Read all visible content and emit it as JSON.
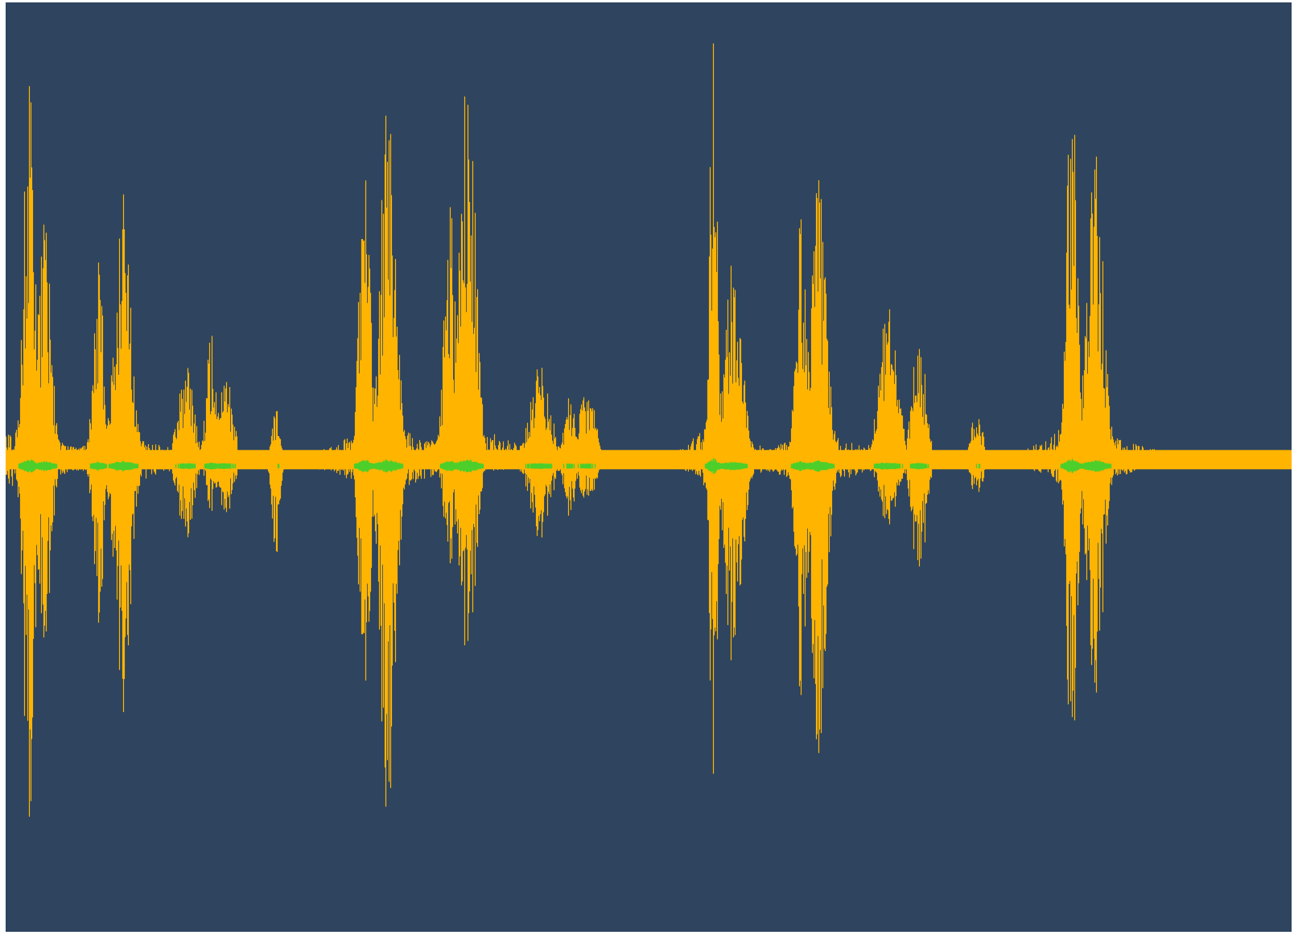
{
  "chart_data": {
    "type": "area",
    "title": "",
    "xlabel": "",
    "ylabel": "",
    "grid": false,
    "legend": "none",
    "colors": {
      "background": "#2e445f",
      "primary_wave": "#ffb400",
      "secondary_wave": "#4ccf2a"
    },
    "ylim": [
      -1,
      1
    ],
    "bursts": [
      {
        "t": 0.018,
        "up": 0.93,
        "down": 0.86,
        "width": 0.004
      },
      {
        "t": 0.03,
        "up": 0.56,
        "down": 0.41,
        "width": 0.005
      },
      {
        "t": 0.072,
        "up": 0.45,
        "down": 0.36,
        "width": 0.004
      },
      {
        "t": 0.091,
        "up": 0.63,
        "down": 0.58,
        "width": 0.006
      },
      {
        "t": 0.14,
        "up": 0.22,
        "down": 0.18,
        "width": 0.006
      },
      {
        "t": 0.16,
        "up": 0.3,
        "down": 0.12,
        "width": 0.004
      },
      {
        "t": 0.17,
        "up": 0.23,
        "down": 0.15,
        "width": 0.006
      },
      {
        "t": 0.21,
        "up": 0.12,
        "down": 0.22,
        "width": 0.003
      },
      {
        "t": 0.279,
        "up": 0.81,
        "down": 0.62,
        "width": 0.004
      },
      {
        "t": 0.297,
        "up": 0.82,
        "down": 0.8,
        "width": 0.006
      },
      {
        "t": 0.345,
        "up": 0.63,
        "down": 0.25,
        "width": 0.004
      },
      {
        "t": 0.359,
        "up": 0.91,
        "down": 0.45,
        "width": 0.006
      },
      {
        "t": 0.415,
        "up": 0.22,
        "down": 0.18,
        "width": 0.008
      },
      {
        "t": 0.438,
        "up": 0.17,
        "down": 0.15,
        "width": 0.004
      },
      {
        "t": 0.452,
        "up": 0.17,
        "down": 0.1,
        "width": 0.006
      },
      {
        "t": 0.55,
        "up": 1.0,
        "down": 0.73,
        "width": 0.003
      },
      {
        "t": 0.565,
        "up": 0.45,
        "down": 0.45,
        "width": 0.007
      },
      {
        "t": 0.618,
        "up": 0.57,
        "down": 0.54,
        "width": 0.004
      },
      {
        "t": 0.632,
        "up": 0.65,
        "down": 0.66,
        "width": 0.006
      },
      {
        "t": 0.686,
        "up": 0.36,
        "down": 0.15,
        "width": 0.007
      },
      {
        "t": 0.71,
        "up": 0.3,
        "down": 0.28,
        "width": 0.005
      },
      {
        "t": 0.755,
        "up": 0.13,
        "down": 0.1,
        "width": 0.004
      },
      {
        "t": 0.829,
        "up": 0.94,
        "down": 0.73,
        "width": 0.004
      },
      {
        "t": 0.847,
        "up": 0.74,
        "down": 0.55,
        "width": 0.006
      }
    ],
    "noise_floor_end": 1.0,
    "baseline_fraction": 0.492
  }
}
